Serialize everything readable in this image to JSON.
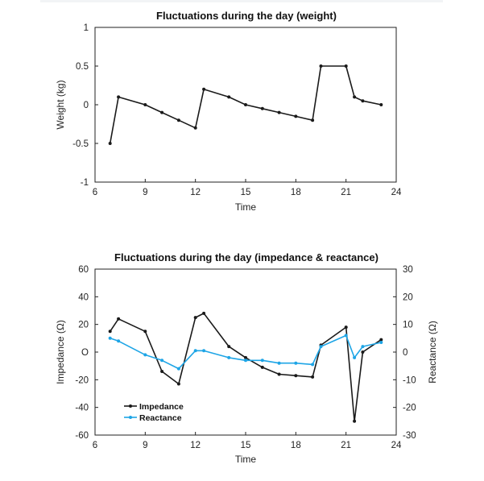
{
  "chart_data": [
    {
      "type": "line",
      "title": "Fluctuations during the day (weight)",
      "xlabel": "Time",
      "ylabel": "Weight (kg)",
      "xlim": [
        6,
        24
      ],
      "ylim": [
        -1,
        1
      ],
      "x_ticks": [
        "6",
        "9",
        "12",
        "15",
        "18",
        "21",
        "24"
      ],
      "y_ticks": [
        "1",
        "0.5",
        "0",
        "-0.5",
        "-1"
      ],
      "grid": false,
      "series": [
        {
          "color": "#1a1a1a",
          "x": [
            6.9,
            7.4,
            9,
            10,
            11,
            12,
            12.5,
            14,
            15,
            16,
            17,
            18,
            19,
            19.5,
            21,
            21.5,
            22,
            23.1
          ],
          "y": [
            -0.5,
            0.1,
            0.0,
            -0.1,
            -0.2,
            -0.3,
            0.2,
            0.1,
            0.0,
            -0.05,
            -0.1,
            -0.15,
            -0.2,
            0.5,
            0.5,
            0.1,
            0.05,
            0.0
          ]
        }
      ]
    },
    {
      "type": "line",
      "title": "Fluctuations during the day (impedance & reactance)",
      "xlabel": "Time",
      "ylabel": "Impedance (Ω)",
      "y2label": "Reactance (Ω)",
      "xlim": [
        6,
        24
      ],
      "ylim": [
        -60,
        60
      ],
      "y2lim": [
        -30,
        30
      ],
      "x_ticks": [
        "6",
        "9",
        "12",
        "15",
        "18",
        "21",
        "24"
      ],
      "y_ticks": [
        "60",
        "40",
        "20",
        "O",
        "-20",
        "-40",
        "-60"
      ],
      "y2_ticks": [
        "30",
        "20",
        "10",
        "0",
        "-10",
        "-20",
        "-30"
      ],
      "grid": false,
      "legend_position": "bottom-left",
      "series": [
        {
          "name": "Impedance",
          "axis": "left",
          "color": "#1a1a1a",
          "x": [
            6.9,
            7.4,
            9,
            10,
            11,
            12,
            12.5,
            14,
            15,
            16,
            17,
            18,
            19,
            19.5,
            21,
            21.5,
            22,
            23.1
          ],
          "y": [
            15,
            24,
            15,
            -14,
            -23,
            25,
            28,
            4,
            -4,
            -11,
            -16,
            -17,
            -18,
            5,
            18,
            -50,
            0,
            9
          ]
        },
        {
          "name": "Reactance",
          "axis": "right",
          "color": "#1ea5e6",
          "x": [
            6.9,
            7.4,
            9,
            10,
            11,
            12,
            12.5,
            14,
            15,
            16,
            17,
            18,
            19,
            19.5,
            21,
            21.5,
            22,
            23.1
          ],
          "y": [
            5,
            4,
            -1,
            -3,
            -6,
            0.5,
            0.5,
            -2,
            -3,
            -3,
            -4,
            -4,
            -4.5,
            2,
            6,
            -2,
            2,
            3.5
          ]
        }
      ]
    }
  ]
}
